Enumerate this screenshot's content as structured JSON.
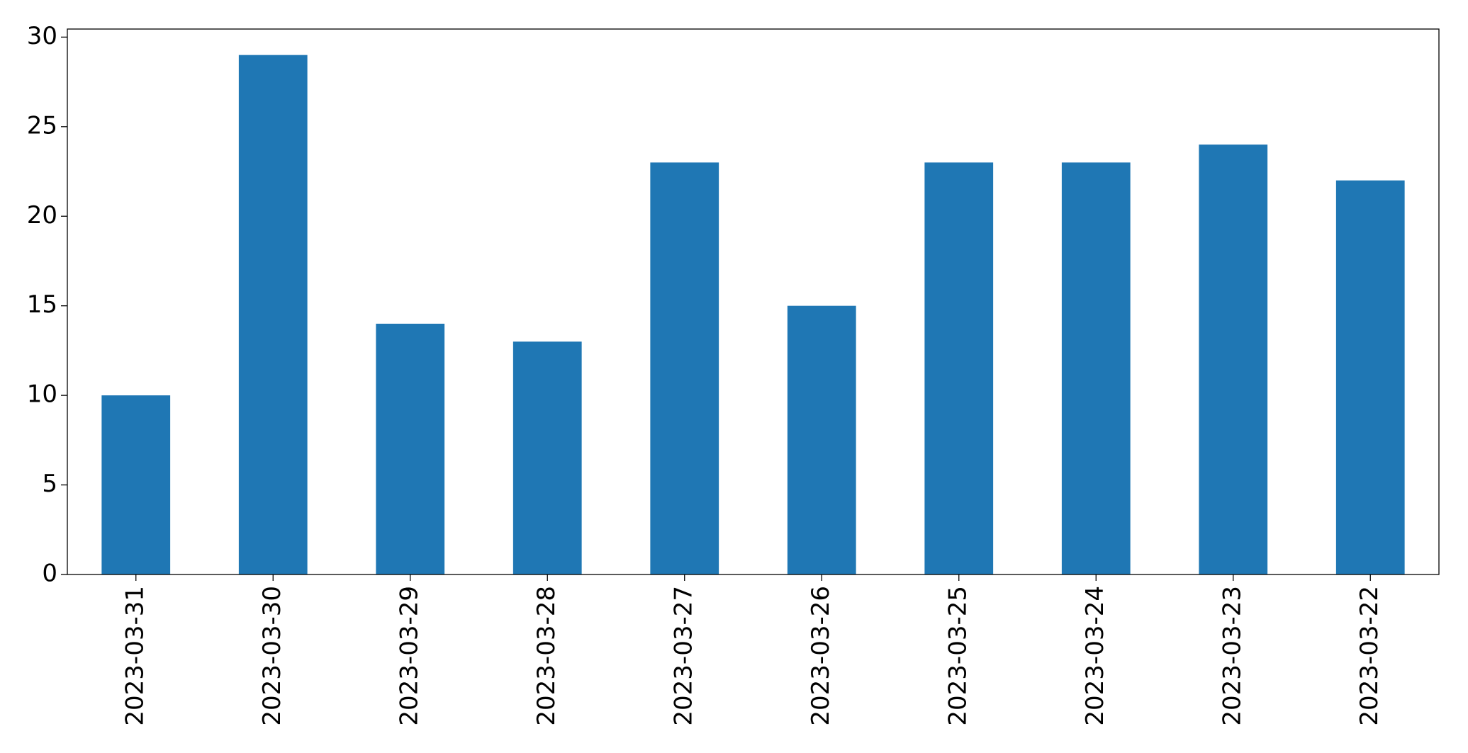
{
  "chart_data": {
    "type": "bar",
    "categories": [
      "2023-03-31",
      "2023-03-30",
      "2023-03-29",
      "2023-03-28",
      "2023-03-27",
      "2023-03-26",
      "2023-03-25",
      "2023-03-24",
      "2023-03-23",
      "2023-03-22"
    ],
    "values": [
      10,
      29,
      14,
      13,
      23,
      15,
      23,
      23,
      24,
      22
    ],
    "color": "#1f77b4",
    "ylim": [
      0,
      30.45
    ],
    "yticks": [
      0,
      5,
      10,
      15,
      20,
      25,
      30
    ],
    "grid": false
  }
}
